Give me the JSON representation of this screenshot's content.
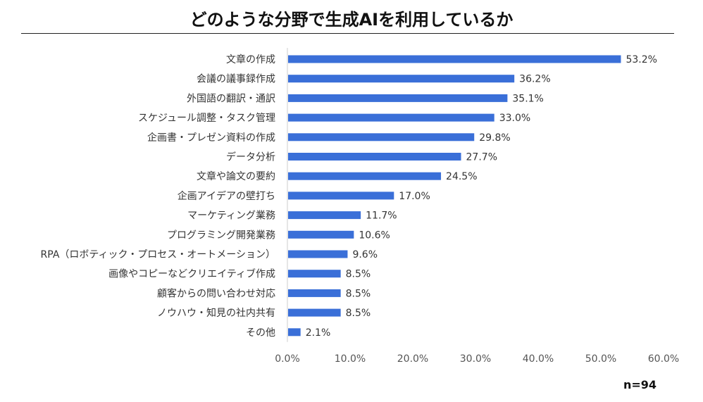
{
  "title": "どのような分野で生成AIを利用しているか",
  "sample_size": "n=94",
  "colors": {
    "bar": "#3a6fd8",
    "axis": "#cccccc",
    "text": "#333333"
  },
  "chart_data": {
    "type": "bar",
    "orientation": "horizontal",
    "title": "どのような分野で生成AIを利用しているか",
    "categories": [
      "文章の作成",
      "会議の議事録作成",
      "外国語の翻訳・通訳",
      "スケジュール調整・タスク管理",
      "企画書・プレゼン資料の作成",
      "データ分析",
      "文章や論文の要約",
      "企画アイデアの壁打ち",
      "マーケティング業務",
      "プログラミング開発業務",
      "RPA（ロボティック・プロセス・オートメーション）",
      "画像やコピーなどクリエイティブ作成",
      "顧客からの問い合わせ対応",
      "ノウハウ・知見の社内共有",
      "その他"
    ],
    "values": [
      53.2,
      36.2,
      35.1,
      33.0,
      29.8,
      27.7,
      24.5,
      17.0,
      11.7,
      10.6,
      9.6,
      8.5,
      8.5,
      8.5,
      2.1
    ],
    "value_labels": [
      "53.2%",
      "36.2%",
      "35.1%",
      "33.0%",
      "29.8%",
      "27.7%",
      "24.5%",
      "17.0%",
      "11.7%",
      "10.6%",
      "9.6%",
      "8.5%",
      "8.5%",
      "8.5%",
      "2.1%"
    ],
    "xlim": [
      0,
      60
    ],
    "x_ticks": [
      "0.0%",
      "10.0%",
      "20.0%",
      "30.0%",
      "40.0%",
      "50.0%",
      "60.0%"
    ],
    "grid": false,
    "legend": "none"
  }
}
